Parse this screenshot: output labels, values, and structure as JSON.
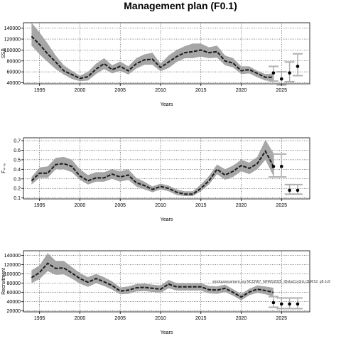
{
  "figure": {
    "title": "Management plan (F0.1)"
  },
  "chart_data": [
    {
      "type": "line",
      "panel": "top",
      "title": "",
      "xlabel": "Years",
      "ylabel": "SSB",
      "xlim": [
        1993,
        2028.5
      ],
      "ylim": [
        38000,
        150000
      ],
      "xticks": [
        1995,
        2000,
        2005,
        2010,
        2015,
        2020,
        2025
      ],
      "yticks": [
        40000,
        60000,
        80000,
        100000,
        120000,
        140000
      ],
      "ytick_labels": [
        "40000",
        "60000",
        "80000",
        "100000",
        "120000",
        "140000"
      ],
      "grid": true,
      "x": [
        1994,
        1995,
        1996,
        1997,
        1998,
        1999,
        2000,
        2001,
        2002,
        2003,
        2004,
        2005,
        2006,
        2007,
        2008,
        2009,
        2010,
        2011,
        2012,
        2013,
        2014,
        2015,
        2016,
        2017,
        2018,
        2019,
        2020,
        2021,
        2022,
        2023,
        2024
      ],
      "series": [
        {
          "role": "estimate",
          "values": [
            125000,
            110000,
            93000,
            78000,
            62000,
            55000,
            48000,
            51000,
            65000,
            75000,
            64000,
            70000,
            62000,
            75000,
            82000,
            83000,
            68000,
            78000,
            88000,
            95000,
            97000,
            100000,
            95000,
            97000,
            80000,
            76000,
            62000,
            64000,
            57000,
            50000,
            50000
          ]
        },
        {
          "role": "upper",
          "values": [
            150000,
            132000,
            112000,
            90000,
            72000,
            62000,
            53000,
            60000,
            75000,
            85000,
            72000,
            79000,
            70000,
            85000,
            92000,
            95000,
            75000,
            90000,
            100000,
            107000,
            112000,
            112000,
            105000,
            108000,
            90000,
            85000,
            70000,
            70000,
            62000,
            56000,
            57000
          ]
        },
        {
          "role": "lower",
          "values": [
            108000,
            92000,
            78000,
            65000,
            55000,
            47000,
            43000,
            44000,
            56000,
            65000,
            57000,
            62000,
            55000,
            66000,
            73000,
            73000,
            61000,
            67000,
            78000,
            85000,
            85000,
            88000,
            85000,
            86000,
            72000,
            68000,
            56000,
            57000,
            50000,
            44000,
            43000
          ]
        }
      ],
      "projection": {
        "x": [
          2024,
          2025,
          2026,
          2027
        ],
        "values": [
          58000,
          47000,
          58000,
          70000
        ],
        "upper": [
          70000,
          60000,
          78000,
          93000
        ],
        "lower": [
          43000,
          36000,
          42000,
          53000
        ]
      }
    },
    {
      "type": "line",
      "panel": "middle",
      "title": "",
      "xlabel": "Years",
      "ylabel": "F₄₋₈",
      "xlim": [
        1993,
        2028.5
      ],
      "ylim": [
        0.09,
        0.73
      ],
      "xticks": [
        1995,
        2000,
        2005,
        2010,
        2015,
        2020,
        2025
      ],
      "yticks": [
        0.1,
        0.2,
        0.3,
        0.4,
        0.5,
        0.6,
        0.7
      ],
      "ytick_labels": [
        "0.1",
        "0.2",
        "0.3",
        "0.4",
        "0.5",
        "0.6",
        "0.7"
      ],
      "grid": true,
      "x": [
        1994,
        1995,
        1996,
        1997,
        1998,
        1999,
        2000,
        2001,
        2002,
        2003,
        2004,
        2005,
        2006,
        2007,
        2008,
        2009,
        2010,
        2011,
        2012,
        2013,
        2014,
        2015,
        2016,
        2017,
        2018,
        2019,
        2020,
        2021,
        2022,
        2023,
        2024
      ],
      "series": [
        {
          "role": "estimate",
          "values": [
            0.28,
            0.36,
            0.36,
            0.45,
            0.46,
            0.43,
            0.33,
            0.28,
            0.31,
            0.31,
            0.35,
            0.32,
            0.34,
            0.26,
            0.23,
            0.19,
            0.22,
            0.2,
            0.16,
            0.14,
            0.14,
            0.2,
            0.28,
            0.4,
            0.34,
            0.38,
            0.44,
            0.41,
            0.46,
            0.59,
            0.43
          ]
        },
        {
          "role": "upper",
          "values": [
            0.32,
            0.42,
            0.43,
            0.52,
            0.53,
            0.5,
            0.4,
            0.34,
            0.37,
            0.37,
            0.4,
            0.38,
            0.4,
            0.31,
            0.27,
            0.22,
            0.25,
            0.23,
            0.19,
            0.17,
            0.17,
            0.24,
            0.33,
            0.45,
            0.4,
            0.44,
            0.5,
            0.47,
            0.53,
            0.71,
            0.57
          ]
        },
        {
          "role": "lower",
          "values": [
            0.24,
            0.31,
            0.31,
            0.4,
            0.4,
            0.37,
            0.29,
            0.24,
            0.27,
            0.27,
            0.3,
            0.27,
            0.29,
            0.22,
            0.19,
            0.16,
            0.19,
            0.17,
            0.13,
            0.12,
            0.12,
            0.17,
            0.24,
            0.35,
            0.29,
            0.32,
            0.38,
            0.35,
            0.4,
            0.5,
            0.33
          ]
        }
      ],
      "projection": {
        "x": [
          2024,
          2025,
          2026,
          2027
        ],
        "values": [
          0.43,
          0.43,
          0.18,
          0.18
        ],
        "upper": [
          0.56,
          0.56,
          0.24,
          0.24
        ],
        "lower": [
          0.32,
          0.32,
          0.14,
          0.14
        ]
      }
    },
    {
      "type": "line",
      "panel": "bottom",
      "title": "",
      "xlabel": "Years",
      "ylabel": "Recruitment",
      "xlim": [
        1993,
        2028.5
      ],
      "ylim": [
        18000,
        150000
      ],
      "xticks": [
        1995,
        2000,
        2005,
        2010,
        2015,
        2020,
        2025
      ],
      "yticks": [
        20000,
        40000,
        60000,
        80000,
        100000,
        120000,
        140000
      ],
      "ytick_labels": [
        "20000",
        "40000",
        "60000",
        "80000",
        "100000",
        "120000",
        "140000"
      ],
      "grid": true,
      "annotation": "stockassessment.org NCCN67_NFWG2025_IDobsCor3rd.r119012, g8.1c9",
      "x": [
        1994,
        1995,
        1996,
        1997,
        1998,
        1999,
        2000,
        2001,
        2002,
        2003,
        2004,
        2005,
        2006,
        2007,
        2008,
        2009,
        2010,
        2011,
        2012,
        2013,
        2014,
        2015,
        2016,
        2017,
        2018,
        2019,
        2020,
        2021,
        2022,
        2023,
        2024
      ],
      "series": [
        {
          "role": "estimate",
          "values": [
            92000,
            103000,
            123000,
            112000,
            113000,
            102000,
            90000,
            82000,
            90000,
            83000,
            75000,
            63000,
            65000,
            70000,
            71000,
            69000,
            67000,
            78000,
            72000,
            72000,
            72000,
            72000,
            66000,
            65000,
            69000,
            60000,
            50000,
            61000,
            67000,
            64000,
            60000
          ]
        },
        {
          "role": "upper",
          "values": [
            108000,
            118000,
            145000,
            128000,
            128000,
            115000,
            102000,
            93000,
            100000,
            93000,
            84000,
            71000,
            73000,
            78000,
            79000,
            77000,
            75000,
            87000,
            80000,
            80000,
            80000,
            80000,
            74000,
            73000,
            77000,
            67000,
            57000,
            68000,
            75000,
            73000,
            70000
          ]
        },
        {
          "role": "lower",
          "values": [
            80000,
            89000,
            106000,
            98000,
            99000,
            90000,
            79000,
            72000,
            80000,
            74000,
            66000,
            56000,
            57000,
            62000,
            63000,
            61000,
            59000,
            69000,
            64000,
            64000,
            64000,
            64000,
            58000,
            57000,
            61000,
            53000,
            43000,
            54000,
            59000,
            56000,
            51000
          ]
        }
      ],
      "projection": {
        "x": [
          2024,
          2025,
          2026,
          2027
        ],
        "values": [
          38000,
          35000,
          35000,
          35000
        ],
        "upper": [
          51000,
          48000,
          48000,
          48000
        ],
        "lower": [
          28000,
          25000,
          25000,
          25000
        ]
      }
    }
  ]
}
